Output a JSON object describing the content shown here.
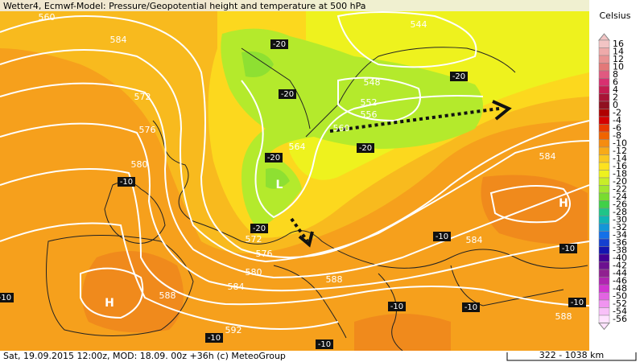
{
  "header": {
    "title": "Wetter4, Ecmwf-Model: Pressure/Geopotential height and temperature at 500 hPa"
  },
  "legend": {
    "unit": "Celsius",
    "items": [
      {
        "label": "16",
        "color": "#f2c4c4"
      },
      {
        "label": "14",
        "color": "#eeaaaa"
      },
      {
        "label": "12",
        "color": "#e99292"
      },
      {
        "label": "10",
        "color": "#e37878"
      },
      {
        "label": "8",
        "color": "#e05a80"
      },
      {
        "label": "6",
        "color": "#d83070"
      },
      {
        "label": "4",
        "color": "#c41c50"
      },
      {
        "label": "2",
        "color": "#a81436"
      },
      {
        "label": "0",
        "color": "#901020"
      },
      {
        "label": "-2",
        "color": "#b00000"
      },
      {
        "label": "-4",
        "color": "#d40000"
      },
      {
        "label": "-6",
        "color": "#e83a00"
      },
      {
        "label": "-8",
        "color": "#f06400"
      },
      {
        "label": "-10",
        "color": "#f58c10"
      },
      {
        "label": "-12",
        "color": "#f8aa18"
      },
      {
        "label": "-14",
        "color": "#fac820"
      },
      {
        "label": "-16",
        "color": "#fde21e"
      },
      {
        "label": "-18",
        "color": "#eef21e"
      },
      {
        "label": "-20",
        "color": "#c8ee28"
      },
      {
        "label": "-22",
        "color": "#a2e630"
      },
      {
        "label": "-24",
        "color": "#78dc30"
      },
      {
        "label": "-26",
        "color": "#40d048"
      },
      {
        "label": "-28",
        "color": "#20c488"
      },
      {
        "label": "-30",
        "color": "#10b4b4"
      },
      {
        "label": "-32",
        "color": "#1496d8"
      },
      {
        "label": "-34",
        "color": "#1470e8"
      },
      {
        "label": "-36",
        "color": "#1440d0"
      },
      {
        "label": "-38",
        "color": "#1414b0"
      },
      {
        "label": "-40",
        "color": "#440094"
      },
      {
        "label": "-42",
        "color": "#6c1090"
      },
      {
        "label": "-44",
        "color": "#902090"
      },
      {
        "label": "-46",
        "color": "#b024b0"
      },
      {
        "label": "-48",
        "color": "#d034d0"
      },
      {
        "label": "-50",
        "color": "#e264e2"
      },
      {
        "label": "-52",
        "color": "#f094f0"
      },
      {
        "label": "-54",
        "color": "#f8c0f8"
      },
      {
        "label": "-56",
        "color": "#ffe2ff"
      }
    ]
  },
  "map": {
    "contour_labels": [
      "560",
      "584",
      "544",
      "572",
      "548",
      "552",
      "556",
      "560",
      "576",
      "564",
      "580",
      "584",
      "572",
      "576",
      "580",
      "584",
      "588",
      "584",
      "588",
      "592",
      "588"
    ],
    "temperature_labels": [
      "-20",
      "-20",
      "-20",
      "-20",
      "-20",
      "-10",
      "-20",
      "-10",
      "-10",
      "-10",
      "-10",
      "-10",
      "-10",
      "-10",
      "-10"
    ],
    "pressure_centers": [
      "H",
      "H",
      "L"
    ]
  },
  "footer": {
    "info": "Sat, 19.09.2015 12:00z, MOD: 18.09. 00z +36h (c) MeteoGroup",
    "scale": "322 - 1038 km"
  }
}
